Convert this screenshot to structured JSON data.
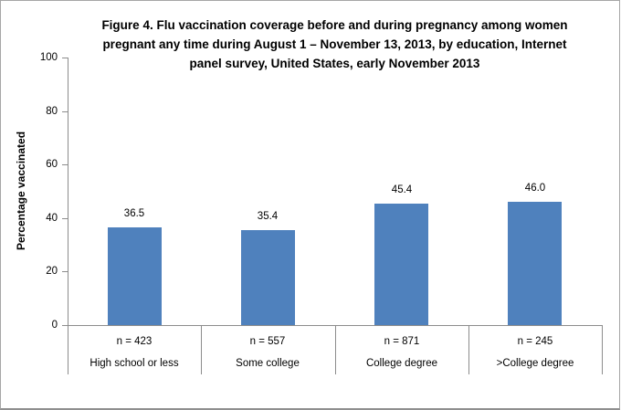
{
  "chart_data": {
    "type": "bar",
    "title_lines": [
      "Figure 4. Flu vaccination coverage before and during pregnancy among women",
      "pregnant any time during August 1 – November 13, 2013, by education, Internet",
      "panel survey, United States, early November 2013"
    ],
    "ylabel": "Percentage vaccinated",
    "xlabel": "",
    "ylim": [
      0,
      100
    ],
    "yticks": [
      0,
      20,
      40,
      60,
      80,
      100
    ],
    "grid": false,
    "legend_position": "none",
    "categories": [
      "High school or less",
      "Some college",
      "College degree",
      ">College degree"
    ],
    "n_labels": [
      "n = 423",
      "n = 557",
      "n = 871",
      "n = 245"
    ],
    "values": [
      36.5,
      35.4,
      45.4,
      46.0
    ],
    "value_labels": [
      "36.5",
      "35.4",
      "45.4",
      "46.0"
    ],
    "colors": {
      "bar": "#4F81BD",
      "axis": "#8C8C8C",
      "text": "#000000",
      "frame_border": "#A6A6A6"
    }
  }
}
